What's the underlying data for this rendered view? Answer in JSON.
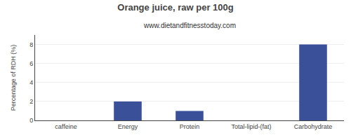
{
  "chart_data": {
    "type": "bar",
    "title": "Orange juice, raw per 100g",
    "subtitle": "www.dietandfitnesstoday.com",
    "categories": [
      "caffeine",
      "Energy",
      "Protein",
      "Total-lipid-(fat)",
      "Carbohydrate"
    ],
    "values": [
      0,
      2,
      1,
      0,
      8
    ],
    "color": "#3a5199",
    "ylabel": "Percentage of RDH (%)",
    "ylim": [
      0,
      9
    ],
    "yticks": [
      0,
      2,
      4,
      6,
      8
    ],
    "grid": true
  }
}
